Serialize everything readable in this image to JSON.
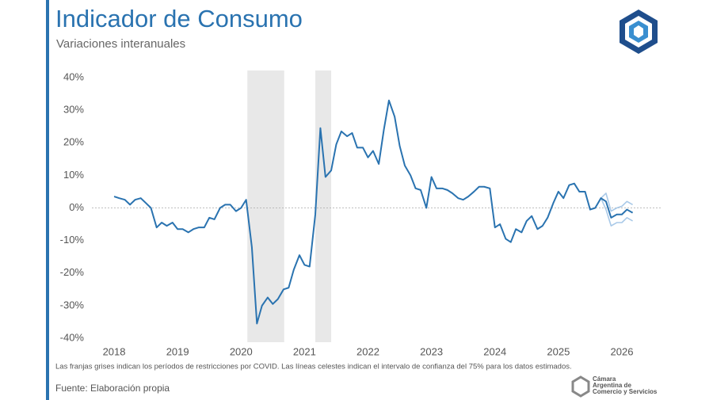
{
  "chart_data": {
    "type": "line",
    "title": "Indicador de Consumo",
    "subtitle": "Variaciones interanuales",
    "note": "Las franjas grises indican los períodos de restricciones por COVID. Las líneas celestes indican el intervalo de confianza del 75% para los datos estimados.",
    "source": "Fuente: Elaboración propia",
    "logo_text": [
      "Cámara",
      "Argentina de",
      "Comercio y Servicios"
    ],
    "x": [
      2018,
      2018.08,
      2018.17,
      2018.25,
      2018.33,
      2018.42,
      2018.5,
      2018.58,
      2018.67,
      2018.75,
      2018.83,
      2018.92,
      2019,
      2019.08,
      2019.17,
      2019.25,
      2019.33,
      2019.42,
      2019.5,
      2019.58,
      2019.67,
      2019.75,
      2019.83,
      2019.92,
      2020,
      2020.08,
      2020.17,
      2020.25,
      2020.33,
      2020.42,
      2020.5,
      2020.58,
      2020.67,
      2020.75,
      2020.83,
      2020.92,
      2021,
      2021.08,
      2021.17,
      2021.25,
      2021.33,
      2021.42,
      2021.5,
      2021.58,
      2021.67,
      2021.75,
      2021.83,
      2021.92,
      2022,
      2022.08,
      2022.17,
      2022.25,
      2022.33,
      2022.42,
      2022.5,
      2022.58,
      2022.67,
      2022.75,
      2022.83,
      2022.92,
      2023,
      2023.08,
      2023.17,
      2023.25,
      2023.33,
      2023.42,
      2023.5,
      2023.58,
      2023.67,
      2023.75,
      2023.83,
      2023.92,
      2024,
      2024.08,
      2024.17,
      2024.25,
      2024.33,
      2024.42,
      2024.5,
      2024.58,
      2024.67,
      2024.75,
      2024.83,
      2024.92,
      2025,
      2025.08,
      2025.17,
      2025.25,
      2025.33,
      2025.42,
      2025.5,
      2025.58,
      2025.67,
      2025.75,
      2025.83,
      2025.92,
      2026,
      2026.08,
      2026.17
    ],
    "series": [
      {
        "color": "#2a73b0",
        "values": [
          3.5,
          3,
          2.5,
          1,
          2.5,
          3,
          1.5,
          0,
          -6,
          -4.5,
          -5.5,
          -4.5,
          -6.5,
          -6.5,
          -7.5,
          -6.5,
          -6,
          -6,
          -3,
          -3.5,
          0,
          1,
          1,
          -1,
          0,
          2.5,
          -12,
          -35.5,
          -30,
          -27.5,
          -29.5,
          -28,
          -25,
          -24.5,
          -19,
          -14.5,
          -17.5,
          -18,
          -2,
          24.5,
          9.5,
          11.5,
          19.5,
          23.5,
          22,
          23,
          18.5,
          18.5,
          15.5,
          17.5,
          13.5,
          24,
          33,
          28,
          19,
          13,
          10,
          6,
          5.5,
          0,
          9.5,
          6,
          6,
          5.5,
          4.5,
          3,
          2.5,
          3.5,
          5,
          6.5,
          6.5,
          6,
          -6,
          -5,
          -9.5,
          -10.5,
          -6.5,
          -7.5,
          -4,
          -2.5,
          -6.5,
          -5.5,
          -3,
          1.5,
          5,
          3,
          7,
          7.5,
          5,
          5,
          -0.5,
          0,
          3,
          2,
          -3,
          -2,
          -2,
          -0.5,
          -1.5
        ]
      },
      {
        "color": "#a9c9e8",
        "values": [
          null,
          null,
          null,
          null,
          null,
          null,
          null,
          null,
          null,
          null,
          null,
          null,
          null,
          null,
          null,
          null,
          null,
          null,
          null,
          null,
          null,
          null,
          null,
          null,
          null,
          null,
          null,
          null,
          null,
          null,
          null,
          null,
          null,
          null,
          null,
          null,
          null,
          null,
          null,
          null,
          null,
          null,
          null,
          null,
          null,
          null,
          null,
          null,
          null,
          null,
          null,
          null,
          null,
          null,
          null,
          null,
          null,
          null,
          null,
          null,
          null,
          null,
          null,
          null,
          null,
          null,
          null,
          null,
          null,
          null,
          null,
          null,
          null,
          null,
          null,
          null,
          null,
          null,
          null,
          null,
          null,
          null,
          null,
          null,
          null,
          null,
          null,
          null,
          null,
          null,
          null,
          null,
          3,
          4.5,
          -1,
          0,
          0.5,
          2,
          1
        ]
      },
      {
        "color": "#a9c9e8",
        "values": [
          null,
          null,
          null,
          null,
          null,
          null,
          null,
          null,
          null,
          null,
          null,
          null,
          null,
          null,
          null,
          null,
          null,
          null,
          null,
          null,
          null,
          null,
          null,
          null,
          null,
          null,
          null,
          null,
          null,
          null,
          null,
          null,
          null,
          null,
          null,
          null,
          null,
          null,
          null,
          null,
          null,
          null,
          null,
          null,
          null,
          null,
          null,
          null,
          null,
          null,
          null,
          null,
          null,
          null,
          null,
          null,
          null,
          null,
          null,
          null,
          null,
          null,
          null,
          null,
          null,
          null,
          null,
          null,
          null,
          null,
          null,
          null,
          null,
          null,
          null,
          null,
          null,
          null,
          null,
          null,
          null,
          null,
          null,
          null,
          null,
          null,
          null,
          null,
          null,
          null,
          null,
          null,
          3,
          -0.5,
          -5.5,
          -4.5,
          -4.5,
          -3,
          -4
        ]
      }
    ],
    "shaded_periods": [
      [
        2020.1,
        2020.68
      ],
      [
        2021.17,
        2021.42
      ]
    ],
    "shade_color": "#e8e8e8",
    "xlim": [
      2017.6,
      2026.3
    ],
    "xticks": [
      2018,
      2019,
      2020,
      2021,
      2022,
      2023,
      2024,
      2025,
      2026
    ],
    "ylim": [
      -40,
      40
    ],
    "yticks": [
      {
        "value": 40,
        "label": "40%"
      },
      {
        "value": 30,
        "label": "30%"
      },
      {
        "value": 20,
        "label": "20%"
      },
      {
        "value": 10,
        "label": "10%"
      },
      {
        "value": 0,
        "label": "0%"
      },
      {
        "value": -10,
        "label": "-10%"
      },
      {
        "value": -20,
        "label": "-20%"
      },
      {
        "value": -30,
        "label": "-30%"
      },
      {
        "value": -40,
        "label": "-40%"
      }
    ],
    "zero_line": true
  }
}
